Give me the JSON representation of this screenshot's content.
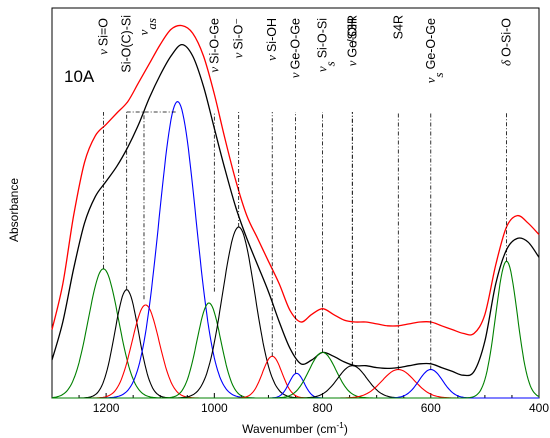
{
  "chart_data": {
    "type": "line",
    "panel_label": "10A",
    "xlabel": "Wavenumber (cm",
    "xlabel_sup": "-1",
    "xlabel_tail": ")",
    "ylabel": "Absorbance",
    "xlim": [
      1300,
      400
    ],
    "x_reversed": true,
    "ylim": [
      0,
      1.0
    ],
    "x_ticks": [
      1200,
      1000,
      800,
      600,
      400
    ],
    "x_tick_labels": [
      "1200",
      "1000",
      "800",
      "600",
      "400"
    ],
    "grid": false,
    "legend": "none",
    "series": [
      {
        "color": "#ff0000",
        "x": [
          1300,
          1280,
          1260,
          1240,
          1220,
          1200,
          1180,
          1160,
          1140,
          1120,
          1100,
          1080,
          1060,
          1040,
          1020,
          1000,
          980,
          960,
          940,
          920,
          900,
          880,
          860,
          840,
          820,
          800,
          780,
          760,
          740,
          720,
          700,
          680,
          660,
          640,
          620,
          600,
          580,
          560,
          540,
          520,
          500,
          480,
          460,
          440,
          420,
          400
        ],
        "y": [
          0.18,
          0.3,
          0.48,
          0.62,
          0.69,
          0.72,
          0.75,
          0.78,
          0.83,
          0.88,
          0.93,
          0.97,
          0.98,
          0.96,
          0.9,
          0.8,
          0.68,
          0.57,
          0.48,
          0.42,
          0.36,
          0.3,
          0.23,
          0.2,
          0.22,
          0.235,
          0.22,
          0.205,
          0.2,
          0.2,
          0.195,
          0.19,
          0.19,
          0.195,
          0.2,
          0.2,
          0.19,
          0.18,
          0.17,
          0.17,
          0.22,
          0.35,
          0.45,
          0.48,
          0.46,
          0.43
        ]
      },
      {
        "color": "#000000",
        "x": [
          1300,
          1280,
          1260,
          1240,
          1220,
          1200,
          1180,
          1160,
          1140,
          1120,
          1100,
          1080,
          1060,
          1040,
          1020,
          1000,
          980,
          960,
          940,
          920,
          900,
          880,
          860,
          840,
          820,
          800,
          780,
          760,
          740,
          720,
          700,
          680,
          660,
          640,
          620,
          600,
          580,
          560,
          540,
          520,
          500,
          480,
          460,
          440,
          420,
          400
        ],
        "y": [
          0.1,
          0.2,
          0.34,
          0.46,
          0.53,
          0.57,
          0.61,
          0.66,
          0.72,
          0.79,
          0.85,
          0.9,
          0.93,
          0.9,
          0.82,
          0.71,
          0.6,
          0.5,
          0.42,
          0.35,
          0.28,
          0.2,
          0.13,
          0.09,
          0.1,
          0.12,
          0.11,
          0.095,
          0.085,
          0.085,
          0.08,
          0.078,
          0.08,
          0.085,
          0.09,
          0.09,
          0.08,
          0.07,
          0.06,
          0.07,
          0.15,
          0.3,
          0.39,
          0.42,
          0.41,
          0.37
        ]
      },
      {
        "color": "#008000",
        "peak_x": 1205,
        "peak_y": 0.34,
        "width": 28
      },
      {
        "color": "#000000",
        "peak_x": 1162,
        "peak_y": 0.285,
        "width": 22
      },
      {
        "color": "#ff0000",
        "peak_x": 1127,
        "peak_y": 0.245,
        "width": 25
      },
      {
        "color": "#0000ff",
        "peak_x": 1068,
        "peak_y": 0.78,
        "width": 34
      },
      {
        "color": "#008000",
        "peak_x": 1010,
        "peak_y": 0.25,
        "width": 22
      },
      {
        "color": "#000000",
        "peak_x": 955,
        "peak_y": 0.45,
        "width": 30
      },
      {
        "color": "#ff0000",
        "peak_x": 893,
        "peak_y": 0.11,
        "width": 18
      },
      {
        "color": "#0000ff",
        "peak_x": 848,
        "peak_y": 0.065,
        "width": 14
      },
      {
        "color": "#008000",
        "peak_x": 800,
        "peak_y": 0.12,
        "width": 25
      },
      {
        "color": "#000000",
        "peak_x": 745,
        "peak_y": 0.085,
        "width": 27
      },
      {
        "color": "#ff0000",
        "peak_x": 660,
        "peak_y": 0.075,
        "width": 30
      },
      {
        "color": "#0000ff",
        "peak_x": 600,
        "peak_y": 0.075,
        "width": 22
      },
      {
        "color": "#008000",
        "peak_x": 460,
        "peak_y": 0.36,
        "width": 20
      }
    ],
    "annotations": [
      {
        "prefix": "ν",
        "sub": "",
        "text": "Si=O",
        "x": 1205,
        "y": 0.34
      },
      {
        "prefix": "",
        "sub": "",
        "text": "Si-O(C)-Si",
        "x": 1162,
        "y": 0.285
      },
      {
        "prefix": "ν",
        "sub": "as",
        "text": "",
        "x": 1130,
        "y": 0.26
      },
      {
        "prefix": "ν",
        "sub": "",
        "text": "Si-O-Ge",
        "x": 1000,
        "y": 0.28
      },
      {
        "prefix": "ν",
        "sub": "",
        "text": "Si-O⁻",
        "x": 955,
        "y": 0.45
      },
      {
        "prefix": "ν",
        "sub": "",
        "text": "Si-OH",
        "x": 893,
        "y": 0.11
      },
      {
        "prefix": "ν",
        "sub": "",
        "text": "Ge-O-Ge",
        "x": 850,
        "y": 0.065
      },
      {
        "prefix": "ν",
        "sub": "s",
        "text": "Si-O-Si",
        "x": 800,
        "y": 0.12
      },
      {
        "prefix": "ν",
        "sub": "",
        "text": "Ge-OH",
        "x": 745,
        "y": 0.085
      },
      {
        "prefix": "",
        "sub": "",
        "text": "/S3R",
        "x": 745,
        "y": 0.085
      },
      {
        "prefix": "",
        "sub": "",
        "text": "S4R",
        "x": 660,
        "y": 0.075
      },
      {
        "prefix": "ν",
        "sub": "s",
        "text": "Ge-O-Ge",
        "x": 600,
        "y": 0.075
      },
      {
        "prefix": "δ",
        "sub": "",
        "text": "O-Si-O",
        "x": 460,
        "y": 0.36
      }
    ]
  }
}
